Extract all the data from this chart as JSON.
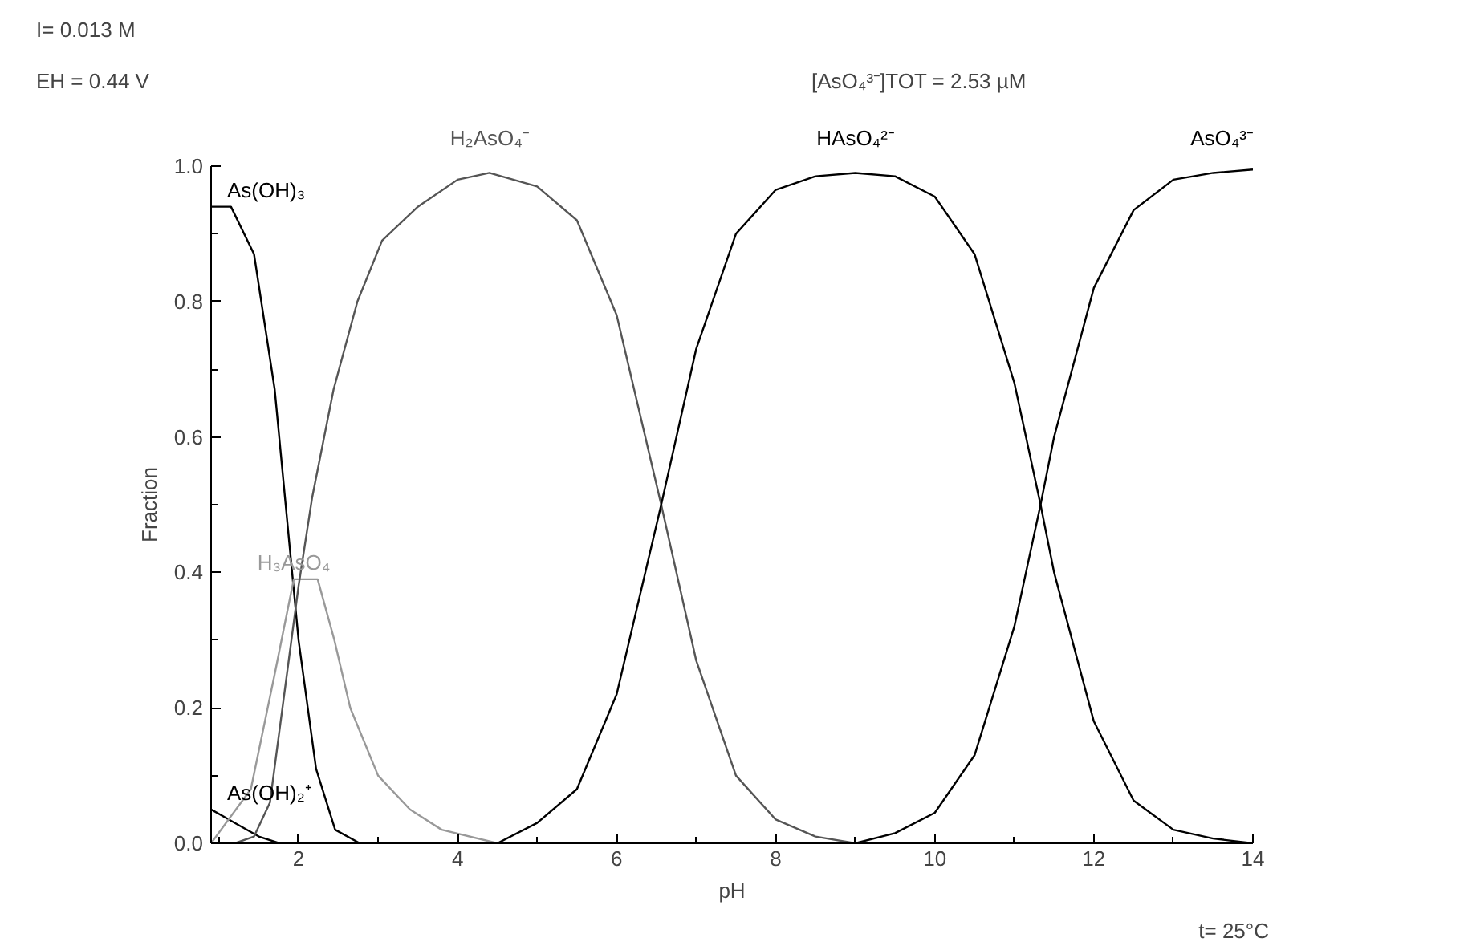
{
  "chart_data": {
    "type": "line",
    "xlabel": "pH",
    "ylabel": "Fraction",
    "xlim": [
      0.9,
      14
    ],
    "ylim": [
      0,
      1.0
    ],
    "xticks": [
      2,
      4,
      6,
      8,
      10,
      12,
      14
    ],
    "yticks": [
      {
        "value": 0,
        "label": "0.0"
      },
      {
        "value": 0.2,
        "label": "0.2"
      },
      {
        "value": 0.4,
        "label": "0.4"
      },
      {
        "value": 0.6,
        "label": "0.6"
      },
      {
        "value": 0.8,
        "label": "0.8"
      },
      {
        "value": 1.0,
        "label": "1.0"
      }
    ],
    "grid": false,
    "marker": "none",
    "line_style": "solid",
    "annotations": [
      "I= 0.013 M",
      "EH =  0.44 V",
      "[AsO₄³⁻]TOT =   2.53 µM",
      "t= 25°C"
    ],
    "series": [
      {
        "name": "As(OH)₃",
        "color": "#000000",
        "x": [
          0.9,
          1.15,
          1.44,
          1.7,
          2.0,
          2.22,
          2.46,
          2.77
        ],
        "values": [
          0.94,
          0.94,
          0.87,
          0.67,
          0.3,
          0.11,
          0.02,
          0
        ]
      },
      {
        "name": "As(OH)₂⁺",
        "color": "#000000",
        "x": [
          0.9,
          1.2,
          1.5,
          1.76
        ],
        "values": [
          0.05,
          0.03,
          0.01,
          0
        ]
      },
      {
        "name": "H₃AsO₄",
        "color": "#999999",
        "x": [
          0.9,
          1.4,
          1.7,
          1.94,
          2.24,
          2.45,
          2.65,
          3.0,
          3.4,
          3.8,
          4.5
        ],
        "values": [
          0,
          0.08,
          0.25,
          0.39,
          0.39,
          0.3,
          0.2,
          0.1,
          0.05,
          0.02,
          0
        ]
      },
      {
        "name": "H₂AsO₄⁻",
        "color": "#555555",
        "x": [
          1.2,
          1.44,
          1.64,
          2.0,
          2.17,
          2.44,
          2.74,
          3.05,
          3.5,
          4.0,
          4.4,
          5.0,
          5.5,
          6.0,
          6.56,
          7.0,
          7.5,
          8.0,
          8.5,
          9.0
        ],
        "values": [
          0,
          0.01,
          0.06,
          0.38,
          0.51,
          0.67,
          0.8,
          0.89,
          0.94,
          0.98,
          0.99,
          0.97,
          0.92,
          0.78,
          0.5,
          0.27,
          0.1,
          0.035,
          0.01,
          0
        ]
      },
      {
        "name": "HAsO₄²⁻",
        "color": "#000000",
        "x": [
          4.5,
          5.0,
          5.5,
          6.0,
          6.56,
          7.0,
          7.5,
          8.0,
          8.5,
          9.0,
          9.5,
          10.0,
          10.5,
          11.0,
          11.33,
          11.5,
          12.0,
          12.5,
          13.0,
          13.5,
          14.0
        ],
        "values": [
          0,
          0.03,
          0.08,
          0.22,
          0.5,
          0.73,
          0.9,
          0.965,
          0.985,
          0.99,
          0.985,
          0.955,
          0.87,
          0.68,
          0.5,
          0.4,
          0.18,
          0.063,
          0.02,
          0.007,
          0
        ]
      },
      {
        "name": "AsO₄³⁻",
        "color": "#000000",
        "x": [
          9.0,
          9.5,
          10.0,
          10.5,
          11.0,
          11.33,
          11.5,
          12.0,
          12.5,
          13.0,
          13.5,
          14.0
        ],
        "values": [
          0,
          0.015,
          0.045,
          0.13,
          0.32,
          0.5,
          0.6,
          0.82,
          0.935,
          0.98,
          0.99,
          0.995
        ]
      }
    ]
  }
}
